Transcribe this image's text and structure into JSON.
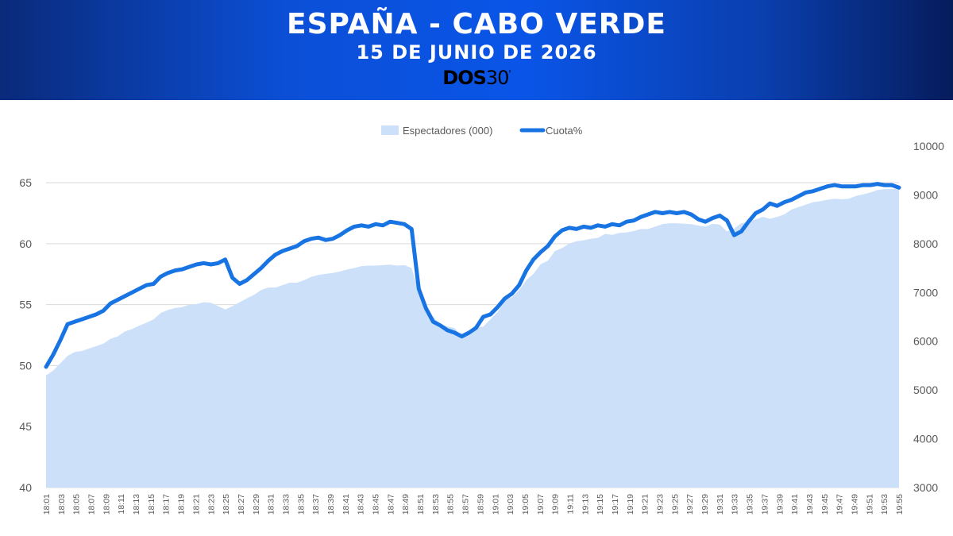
{
  "header": {
    "title": "ESPAÑA - CABO VERDE",
    "subtitle": "15 DE JUNIO DE 2026",
    "logo_bold": "DOS",
    "logo_light": "30",
    "logo_sup": "'"
  },
  "chart_data": {
    "type": "area+line",
    "legend": "top-center",
    "grid": true,
    "x_start": "18:01",
    "x_end": "19:55",
    "x_tick_labels": [
      "18:01",
      "18:03",
      "18:05",
      "18:07",
      "18:09",
      "18:11",
      "18:13",
      "18:15",
      "18:17",
      "18:19",
      "18:21",
      "18:23",
      "18:25",
      "18:27",
      "18:29",
      "18:31",
      "18:33",
      "18:35",
      "18:37",
      "18:39",
      "18:41",
      "18:43",
      "18:45",
      "18:47",
      "18:49",
      "18:51",
      "18:53",
      "18:55",
      "18:57",
      "18:59",
      "19:01",
      "19:03",
      "19:05",
      "19:07",
      "19:09",
      "19:11",
      "19:13",
      "19:15",
      "19:17",
      "19:19",
      "19:21",
      "19:23",
      "19:25",
      "19:27",
      "19:29",
      "19:31",
      "19:33",
      "19:35",
      "19:37",
      "19:39",
      "19:41",
      "19:43",
      "19:45",
      "19:47",
      "19:49",
      "19:51",
      "19:53",
      "19:55"
    ],
    "y_left": {
      "ticks": [
        40,
        45,
        50,
        55,
        60,
        65
      ],
      "range": [
        40,
        68
      ]
    },
    "y_right": {
      "ticks": [
        3000,
        4000,
        5000,
        6000,
        7000,
        8000,
        9000,
        10000
      ],
      "range": [
        3000,
        10000
      ]
    },
    "series": [
      {
        "name": "Espectadores (000)",
        "axis": "right",
        "style": "area",
        "color": "#cce0fa",
        "values": [
          5300,
          5400,
          5550,
          5700,
          5780,
          5800,
          5850,
          5900,
          5950,
          6050,
          6100,
          6200,
          6250,
          6320,
          6380,
          6450,
          6580,
          6640,
          6680,
          6700,
          6750,
          6760,
          6800,
          6790,
          6720,
          6650,
          6720,
          6800,
          6880,
          6950,
          7050,
          7100,
          7100,
          7150,
          7200,
          7200,
          7250,
          7320,
          7360,
          7380,
          7400,
          7430,
          7470,
          7500,
          7540,
          7550,
          7550,
          7560,
          7570,
          7550,
          7560,
          7500,
          7020,
          6700,
          6500,
          6350,
          6300,
          6270,
          6100,
          6180,
          6280,
          6300,
          6450,
          6600,
          6850,
          6900,
          7050,
          7250,
          7380,
          7580,
          7650,
          7850,
          7910,
          8000,
          8050,
          8070,
          8100,
          8120,
          8200,
          8180,
          8220,
          8230,
          8260,
          8300,
          8300,
          8350,
          8400,
          8420,
          8420,
          8410,
          8400,
          8370,
          8350,
          8410,
          8390,
          8250,
          8310,
          8420,
          8450,
          8500,
          8550,
          8510,
          8550,
          8600,
          8700,
          8750,
          8800,
          8850,
          8870,
          8900,
          8920,
          8910,
          8920,
          8980,
          9010,
          9050,
          9100,
          9120,
          9120,
          9130
        ]
      },
      {
        "name": "Cuota%",
        "axis": "left",
        "style": "line",
        "color": "#1874e2",
        "values": [
          49.9,
          50.9,
          52.1,
          53.4,
          53.6,
          53.8,
          54.0,
          54.2,
          54.5,
          55.1,
          55.4,
          55.7,
          56.0,
          56.3,
          56.6,
          56.7,
          57.3,
          57.6,
          57.8,
          57.9,
          58.1,
          58.3,
          58.4,
          58.3,
          58.4,
          58.7,
          57.2,
          56.7,
          57.0,
          57.5,
          58.0,
          58.6,
          59.1,
          59.4,
          59.6,
          59.8,
          60.2,
          60.4,
          60.5,
          60.3,
          60.4,
          60.7,
          61.1,
          61.4,
          61.5,
          61.4,
          61.6,
          61.5,
          61.8,
          61.7,
          61.6,
          61.2,
          56.3,
          54.7,
          53.6,
          53.3,
          52.9,
          52.7,
          52.4,
          52.7,
          53.1,
          54.0,
          54.2,
          54.8,
          55.5,
          55.9,
          56.6,
          57.8,
          58.7,
          59.3,
          59.8,
          60.6,
          61.1,
          61.3,
          61.2,
          61.4,
          61.3,
          61.5,
          61.4,
          61.6,
          61.5,
          61.8,
          61.9,
          62.2,
          62.4,
          62.6,
          62.5,
          62.6,
          62.5,
          62.6,
          62.4,
          62.0,
          61.8,
          62.1,
          62.3,
          61.9,
          60.7,
          61.0,
          61.8,
          62.5,
          62.8,
          63.3,
          63.1,
          63.4,
          63.6,
          63.9,
          64.2,
          64.3,
          64.5,
          64.7,
          64.8,
          64.7,
          64.7,
          64.7,
          64.8,
          64.8,
          64.9,
          64.8,
          64.8,
          64.6
        ]
      }
    ]
  }
}
